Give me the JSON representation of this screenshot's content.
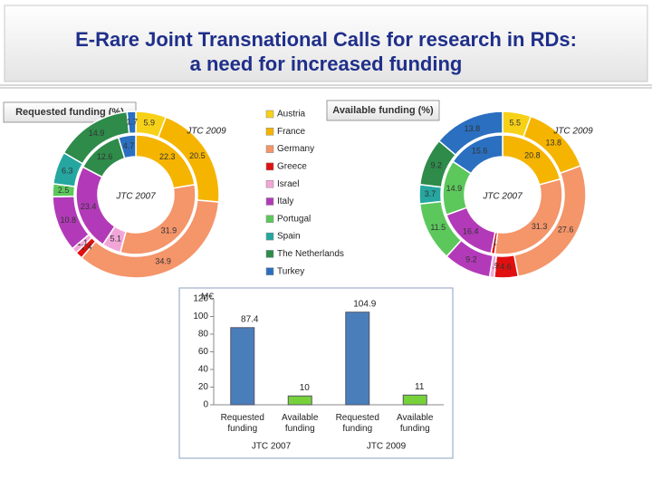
{
  "title": [
    "E-Rare Joint Transnational Calls for research in RDs:",
    "a need for increased funding"
  ],
  "legend": {
    "entries": [
      {
        "name": "Austria",
        "color": "#f7d117"
      },
      {
        "name": "France",
        "color": "#f5b400"
      },
      {
        "name": "Germany",
        "color": "#f4956a"
      },
      {
        "name": "Greece",
        "color": "#e01010"
      },
      {
        "name": "Israel",
        "color": "#f2a6d8"
      },
      {
        "name": "Italy",
        "color": "#b23ab8"
      },
      {
        "name": "Portugal",
        "color": "#5cc85c"
      },
      {
        "name": "Spain",
        "color": "#25a6a0"
      },
      {
        "name": "The Netherlands",
        "color": "#2e8b4a"
      },
      {
        "name": "Turkey",
        "color": "#2a6fc0"
      }
    ]
  },
  "chart_data": [
    {
      "type": "donut",
      "title": "Requested funding (%)",
      "series": [
        {
          "name": "JTC 2009",
          "values": [
            5.9,
            20.5,
            34.9,
            1.4,
            1.1,
            10.8,
            2.5,
            6.3,
            14.9,
            1.7
          ]
        },
        {
          "name": "JTC 2007",
          "values": [
            0,
            22.3,
            31.9,
            0,
            5.1,
            23.4,
            0,
            0,
            12.6,
            4.7
          ]
        }
      ]
    },
    {
      "type": "donut",
      "title": "Available funding (%)",
      "series": [
        {
          "name": "JTC 2009",
          "values": [
            5.5,
            13.8,
            27.6,
            4.6,
            0.9,
            9.2,
            11.5,
            3.7,
            9.2,
            13.8
          ]
        },
        {
          "name": "JTC 2007",
          "values": [
            0,
            20.8,
            31.3,
            1.0,
            0,
            16.4,
            14.9,
            0,
            0,
            15.6
          ]
        }
      ]
    },
    {
      "type": "bar",
      "y_label": "M€",
      "categories": [
        "Requested funding",
        "Available funding",
        "Requested funding",
        "Available funding"
      ],
      "groups": [
        "JTC 2007",
        "JTC 2009"
      ],
      "values": [
        87.4,
        10,
        104.9,
        11
      ],
      "colors": [
        "#4a7ebb",
        "#77d13a",
        "#4a7ebb",
        "#77d13a"
      ],
      "ylim": [
        0,
        120
      ],
      "yticks": [
        0,
        20,
        40,
        60,
        80,
        100,
        120
      ]
    }
  ]
}
